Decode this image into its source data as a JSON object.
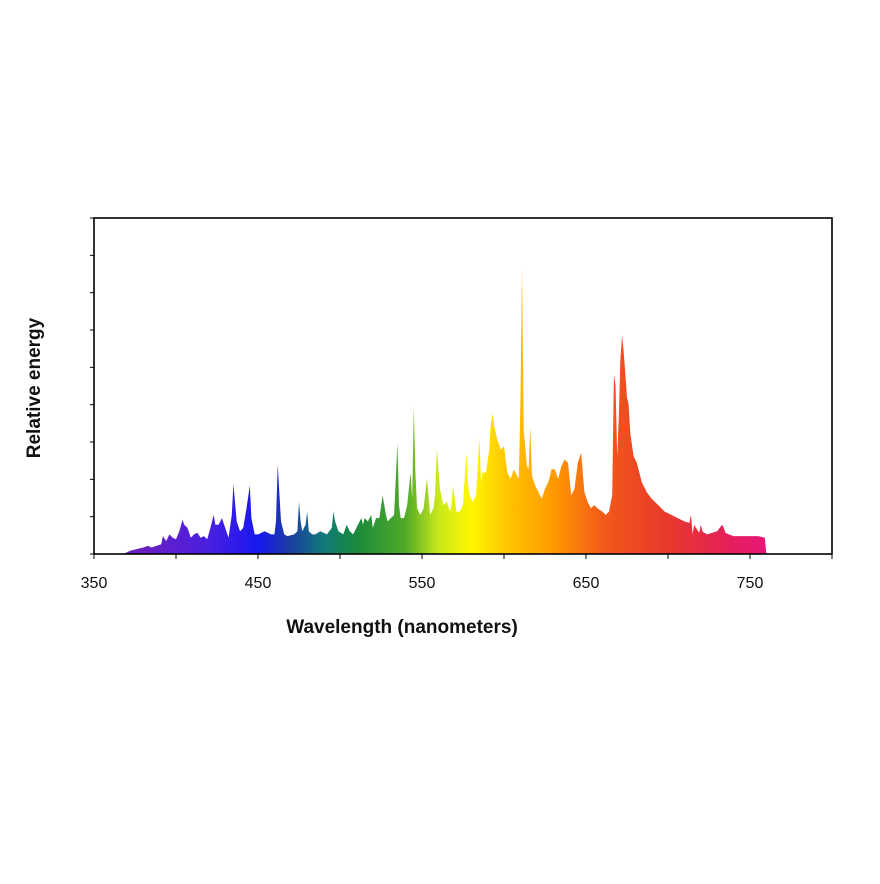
{
  "chart_data": {
    "type": "area",
    "title": "",
    "xlabel": "Wavelength (nanometers)",
    "ylabel": "Relative energy",
    "xlim": [
      350,
      800
    ],
    "ylim": [
      0,
      1
    ],
    "x_ticks": [
      "350",
      "450",
      "550",
      "650",
      "750"
    ],
    "y_ticks_labeled": false,
    "y_minor_tick_count": 9,
    "grid": false,
    "legend": "none",
    "fill": "visible-spectrum gradient (violet to magenta) by wavelength",
    "colors": {
      "380": "#6a1fc2",
      "420": "#4a1fe0",
      "450": "#1818f0",
      "470": "#1a3ea0",
      "490": "#117a7a",
      "510": "#1a8a3a",
      "540": "#50aa28",
      "560": "#c8e81a",
      "580": "#fff700",
      "600": "#ffc800",
      "630": "#ff9a00",
      "660": "#f25a18",
      "700": "#e8382c",
      "740": "#e41e5e",
      "760": "#e8187a"
    },
    "series": [
      {
        "x": [
          368,
          372,
          376,
          380,
          383,
          385,
          388,
          391,
          392,
          394,
          396,
          398,
          400,
          402,
          404,
          405,
          407,
          409,
          411,
          413,
          415,
          417,
          419,
          421,
          423,
          424,
          426,
          428,
          430,
          432,
          434,
          435,
          437,
          439,
          441,
          443,
          445,
          446,
          448,
          450,
          454,
          458,
          460,
          461,
          462,
          464,
          466,
          468,
          472,
          474,
          475,
          476,
          477,
          479,
          480,
          481,
          483,
          485,
          488,
          492,
          495,
          496,
          497,
          499,
          502,
          504,
          506,
          508,
          510,
          513,
          514,
          515,
          517,
          519,
          520,
          522,
          524,
          526,
          528,
          529,
          531,
          533,
          535,
          536,
          537,
          539,
          541,
          543,
          544,
          545,
          546,
          547,
          549,
          551,
          553,
          555,
          557,
          558,
          559,
          561,
          563,
          565,
          567,
          568,
          569,
          571,
          573,
          575,
          577,
          578,
          579,
          581,
          583,
          585,
          586,
          587,
          589,
          591,
          592,
          593,
          594,
          596,
          598,
          600,
          602,
          604,
          606,
          608,
          609,
          610,
          611,
          612,
          614,
          615,
          616,
          617,
          619,
          621,
          623,
          625,
          627,
          629,
          631,
          633,
          635,
          637,
          639,
          641,
          643,
          645,
          647,
          649,
          651,
          653,
          655,
          657,
          660,
          662,
          664,
          666,
          667,
          668,
          669,
          670,
          671,
          672,
          673,
          674,
          675,
          676,
          677,
          679,
          681,
          684,
          687,
          690,
          694,
          698,
          702,
          706,
          710,
          713,
          714,
          715,
          716,
          717,
          719,
          720,
          721,
          722,
          724,
          727,
          730,
          733,
          734,
          735,
          737,
          740,
          745,
          750,
          755,
          759,
          760
        ],
        "y": [
          0,
          0.01,
          0.015,
          0.02,
          0.025,
          0.02,
          0.025,
          0.03,
          0.055,
          0.04,
          0.06,
          0.05,
          0.045,
          0.07,
          0.105,
          0.09,
          0.08,
          0.05,
          0.06,
          0.065,
          0.05,
          0.055,
          0.045,
          0.08,
          0.12,
          0.09,
          0.09,
          0.11,
          0.08,
          0.05,
          0.12,
          0.215,
          0.1,
          0.07,
          0.08,
          0.14,
          0.21,
          0.11,
          0.06,
          0.06,
          0.07,
          0.06,
          0.06,
          0.1,
          0.275,
          0.1,
          0.06,
          0.055,
          0.06,
          0.07,
          0.16,
          0.1,
          0.07,
          0.09,
          0.13,
          0.07,
          0.06,
          0.06,
          0.07,
          0.06,
          0.08,
          0.13,
          0.1,
          0.07,
          0.06,
          0.09,
          0.07,
          0.06,
          0.08,
          0.11,
          0.09,
          0.11,
          0.1,
          0.12,
          0.08,
          0.11,
          0.11,
          0.18,
          0.12,
          0.1,
          0.11,
          0.12,
          0.34,
          0.15,
          0.11,
          0.11,
          0.15,
          0.25,
          0.17,
          0.45,
          0.25,
          0.14,
          0.12,
          0.14,
          0.23,
          0.12,
          0.14,
          0.18,
          0.32,
          0.2,
          0.15,
          0.16,
          0.13,
          0.15,
          0.21,
          0.13,
          0.13,
          0.15,
          0.31,
          0.22,
          0.18,
          0.16,
          0.18,
          0.36,
          0.22,
          0.25,
          0.25,
          0.32,
          0.4,
          0.43,
          0.39,
          0.35,
          0.32,
          0.33,
          0.25,
          0.23,
          0.26,
          0.24,
          0.23,
          0.46,
          0.88,
          0.38,
          0.27,
          0.26,
          0.39,
          0.24,
          0.21,
          0.19,
          0.17,
          0.2,
          0.22,
          0.26,
          0.26,
          0.23,
          0.27,
          0.29,
          0.28,
          0.18,
          0.2,
          0.28,
          0.31,
          0.19,
          0.16,
          0.14,
          0.15,
          0.14,
          0.13,
          0.12,
          0.13,
          0.18,
          0.55,
          0.52,
          0.3,
          0.42,
          0.6,
          0.67,
          0.62,
          0.55,
          0.48,
          0.46,
          0.37,
          0.3,
          0.28,
          0.22,
          0.19,
          0.17,
          0.15,
          0.13,
          0.12,
          0.11,
          0.1,
          0.095,
          0.12,
          0.06,
          0.09,
          0.08,
          0.065,
          0.09,
          0.07,
          0.065,
          0.06,
          0.065,
          0.07,
          0.09,
          0.08,
          0.065,
          0.06,
          0.055,
          0.055,
          0.055,
          0.055,
          0.05,
          0
        ]
      }
    ]
  }
}
